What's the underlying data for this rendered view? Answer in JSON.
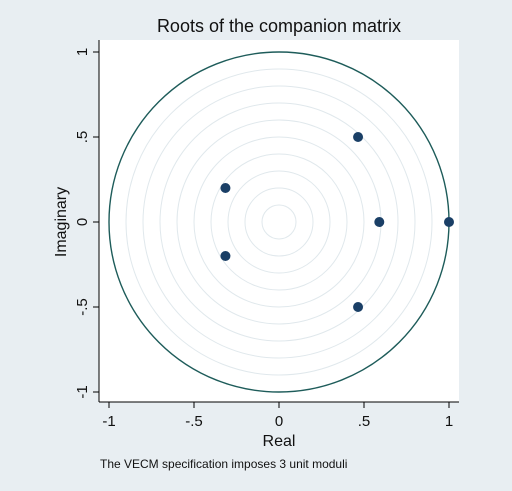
{
  "chart_data": {
    "type": "scatter",
    "title": "Roots of the companion matrix",
    "xlabel": "Real",
    "ylabel": "Imaginary",
    "xlim": [
      -1,
      1
    ],
    "ylim": [
      -1,
      1
    ],
    "x_ticks": [
      {
        "value": -1,
        "label": "-1"
      },
      {
        "value": -0.5,
        "label": "-.5"
      },
      {
        "value": 0,
        "label": "0"
      },
      {
        "value": 0.5,
        "label": ".5"
      },
      {
        "value": 1,
        "label": "1"
      }
    ],
    "y_ticks": [
      {
        "value": -1,
        "label": "-1"
      },
      {
        "value": -0.5,
        "label": "-.5"
      },
      {
        "value": 0,
        "label": "0"
      },
      {
        "value": 0.5,
        "label": ".5"
      },
      {
        "value": 1,
        "label": "1"
      }
    ],
    "points": [
      {
        "x": 0.465,
        "y": 0.5
      },
      {
        "x": 0.465,
        "y": -0.5
      },
      {
        "x": -0.315,
        "y": 0.2
      },
      {
        "x": -0.315,
        "y": -0.2
      },
      {
        "x": 0.59,
        "y": 0.0
      },
      {
        "x": 1.0,
        "y": 0.0
      }
    ],
    "unit_circle": true,
    "grid_circles": [
      0.1,
      0.2,
      0.3,
      0.4,
      0.5,
      0.6,
      0.7,
      0.8,
      0.9
    ],
    "note": "The VECM specification imposes 3 unit moduli",
    "colors": {
      "background": "#e8eef2",
      "plot_background": "#ffffff",
      "unit_circle": "#1e5c5a",
      "grid": "#e0e8ec",
      "points": "#1a3f66",
      "axis": "#000000"
    }
  }
}
